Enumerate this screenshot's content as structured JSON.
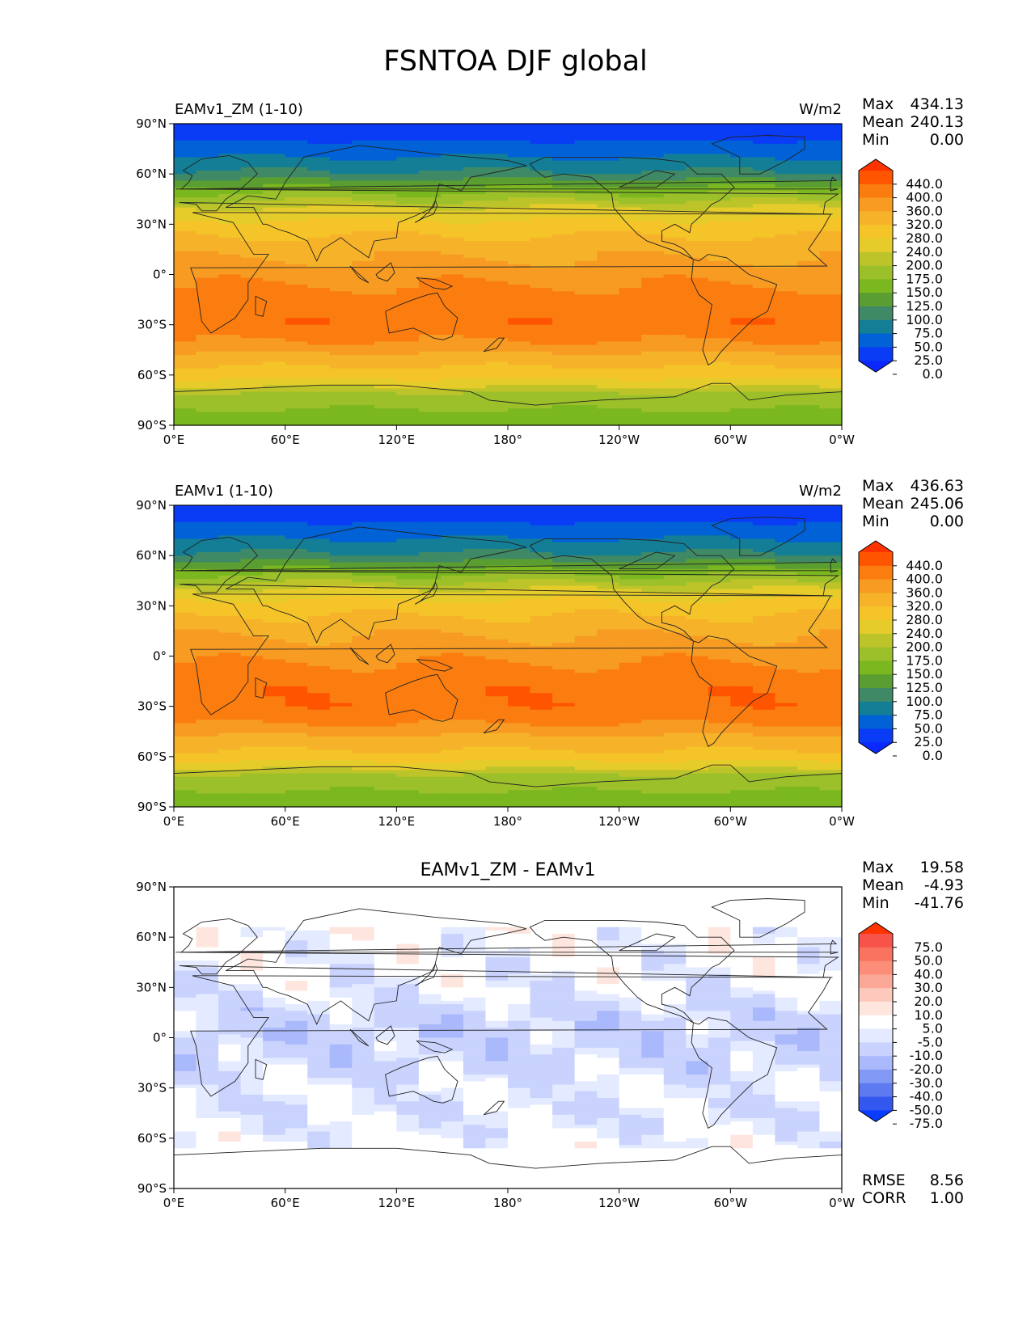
{
  "figure_title": "FSNTOA DJF global",
  "chart_data": [
    {
      "type": "heatmap",
      "title": "EAMv1_ZM (1-10)",
      "units": "W/m2",
      "stats": {
        "Max": "434.13",
        "Mean": "240.13",
        "Min": "0.00"
      },
      "x_ticks": [
        "0°E",
        "60°E",
        "120°E",
        "180°",
        "120°W",
        "60°W",
        "0°W"
      ],
      "y_ticks": [
        "90°N",
        "60°N",
        "30°N",
        "0°",
        "30°S",
        "60°S",
        "90°S"
      ],
      "colorbar_levels": [
        "440.0",
        "400.0",
        "360.0",
        "320.0",
        "280.0",
        "240.0",
        "200.0",
        "175.0",
        "150.0",
        "125.0",
        "100.0",
        "75.0",
        "50.0",
        "25.0",
        "0.0"
      ],
      "colorbar_colors": [
        "#ff3300",
        "#ff5500",
        "#fb7d10",
        "#f79b22",
        "#f6b32a",
        "#f5c429",
        "#e5cc2a",
        "#bdc42a",
        "#9cc02a",
        "#7bb820",
        "#5a9e32",
        "#3f8966",
        "#137e96",
        "#0062d6",
        "#0a3cf5",
        "#0a28ff"
      ],
      "zonal_profile": {
        "lat": [
          90,
          80,
          70,
          60,
          50,
          40,
          30,
          20,
          10,
          0,
          -10,
          -20,
          -30,
          -40,
          -50,
          -60,
          -70,
          -80,
          -90
        ],
        "value": [
          0,
          25,
          50,
          80,
          140,
          200,
          255,
          290,
          320,
          345,
          370,
          385,
          390,
          360,
          300,
          260,
          175,
          150,
          140
        ]
      }
    },
    {
      "type": "heatmap",
      "title": "EAMv1 (1-10)",
      "units": "W/m2",
      "stats": {
        "Max": "436.63",
        "Mean": "245.06",
        "Min": "0.00"
      },
      "x_ticks": [
        "0°E",
        "60°E",
        "120°E",
        "180°",
        "120°W",
        "60°W",
        "0°W"
      ],
      "y_ticks": [
        "90°N",
        "60°N",
        "30°N",
        "0°",
        "30°S",
        "60°S",
        "90°S"
      ],
      "colorbar_levels": [
        "440.0",
        "400.0",
        "360.0",
        "320.0",
        "280.0",
        "240.0",
        "200.0",
        "175.0",
        "150.0",
        "125.0",
        "100.0",
        "75.0",
        "50.0",
        "25.0",
        "0.0"
      ],
      "colorbar_colors": [
        "#ff3300",
        "#ff5500",
        "#fb7d10",
        "#f79b22",
        "#f6b32a",
        "#f5c429",
        "#e5cc2a",
        "#bdc42a",
        "#9cc02a",
        "#7bb820",
        "#5a9e32",
        "#3f8966",
        "#137e96",
        "#0062d6",
        "#0a3cf5",
        "#0a28ff"
      ],
      "zonal_profile": {
        "lat": [
          90,
          80,
          70,
          60,
          50,
          40,
          30,
          20,
          10,
          0,
          -10,
          -20,
          -30,
          -40,
          -50,
          -60,
          -70,
          -80,
          -90
        ],
        "value": [
          0,
          25,
          50,
          80,
          140,
          200,
          260,
          295,
          325,
          350,
          375,
          390,
          392,
          365,
          305,
          265,
          175,
          150,
          140
        ]
      }
    },
    {
      "type": "heatmap",
      "title": "EAMv1_ZM - EAMv1",
      "units": "",
      "stats": {
        "Max": "19.58",
        "Mean": "-4.93",
        "Min": "-41.76"
      },
      "extra_stats": {
        "RMSE": "8.56",
        "CORR": "1.00"
      },
      "x_ticks": [
        "0°E",
        "60°E",
        "120°E",
        "180°",
        "120°W",
        "60°W",
        "0°W"
      ],
      "y_ticks": [
        "90°N",
        "60°N",
        "30°N",
        "0°",
        "30°S",
        "60°S",
        "90°S"
      ],
      "colorbar_levels": [
        "75.0",
        "50.0",
        "40.0",
        "30.0",
        "20.0",
        "10.0",
        "5.0",
        "-5.0",
        "-10.0",
        "-20.0",
        "-30.0",
        "-40.0",
        "-50.0",
        "-75.0"
      ],
      "colorbar_colors": [
        "#ff3300",
        "#f8534a",
        "#fa735e",
        "#fc8d78",
        "#fca898",
        "#fdc9bd",
        "#fee6df",
        "#ffffff",
        "#e4eaff",
        "#c9d3fd",
        "#a9b9fb",
        "#8399f6",
        "#5d7af1",
        "#3358f0",
        "#0a3cff"
      ],
      "zonal_profile": {
        "lat": [
          90,
          60,
          30,
          15,
          0,
          -15,
          -30,
          -45,
          -60,
          -90
        ],
        "value": [
          0,
          -1,
          -5,
          -12,
          -15,
          -12,
          -6,
          -8,
          -4,
          0
        ]
      }
    }
  ]
}
